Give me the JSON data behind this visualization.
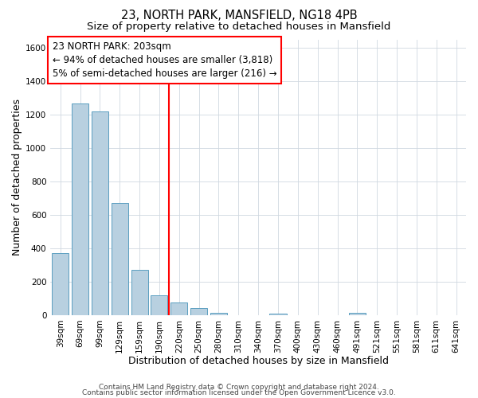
{
  "title": "23, NORTH PARK, MANSFIELD, NG18 4PB",
  "subtitle": "Size of property relative to detached houses in Mansfield",
  "xlabel": "Distribution of detached houses by size in Mansfield",
  "ylabel": "Number of detached properties",
  "bar_labels": [
    "39sqm",
    "69sqm",
    "99sqm",
    "129sqm",
    "159sqm",
    "190sqm",
    "220sqm",
    "250sqm",
    "280sqm",
    "310sqm",
    "340sqm",
    "370sqm",
    "400sqm",
    "430sqm",
    "460sqm",
    "491sqm",
    "521sqm",
    "551sqm",
    "581sqm",
    "611sqm",
    "641sqm"
  ],
  "bar_values": [
    370,
    1270,
    1220,
    670,
    270,
    120,
    75,
    40,
    15,
    0,
    0,
    10,
    0,
    0,
    0,
    15,
    0,
    0,
    0,
    0,
    0
  ],
  "bar_color": "#b8d0e0",
  "bar_edge_color": "#5a9ec0",
  "vline_color": "red",
  "annotation_box_text": "23 NORTH PARK: 203sqm\n← 94% of detached houses are smaller (3,818)\n5% of semi-detached houses are larger (216) →",
  "ylim": [
    0,
    1650
  ],
  "yticks": [
    0,
    200,
    400,
    600,
    800,
    1000,
    1200,
    1400,
    1600
  ],
  "footer_line1": "Contains HM Land Registry data © Crown copyright and database right 2024.",
  "footer_line2": "Contains public sector information licensed under the Open Government Licence v3.0.",
  "background_color": "#ffffff",
  "grid_color": "#d0d8e0",
  "title_fontsize": 10.5,
  "subtitle_fontsize": 9.5,
  "axis_label_fontsize": 9,
  "tick_fontsize": 7.5,
  "annotation_fontsize": 8.5,
  "footer_fontsize": 6.5
}
